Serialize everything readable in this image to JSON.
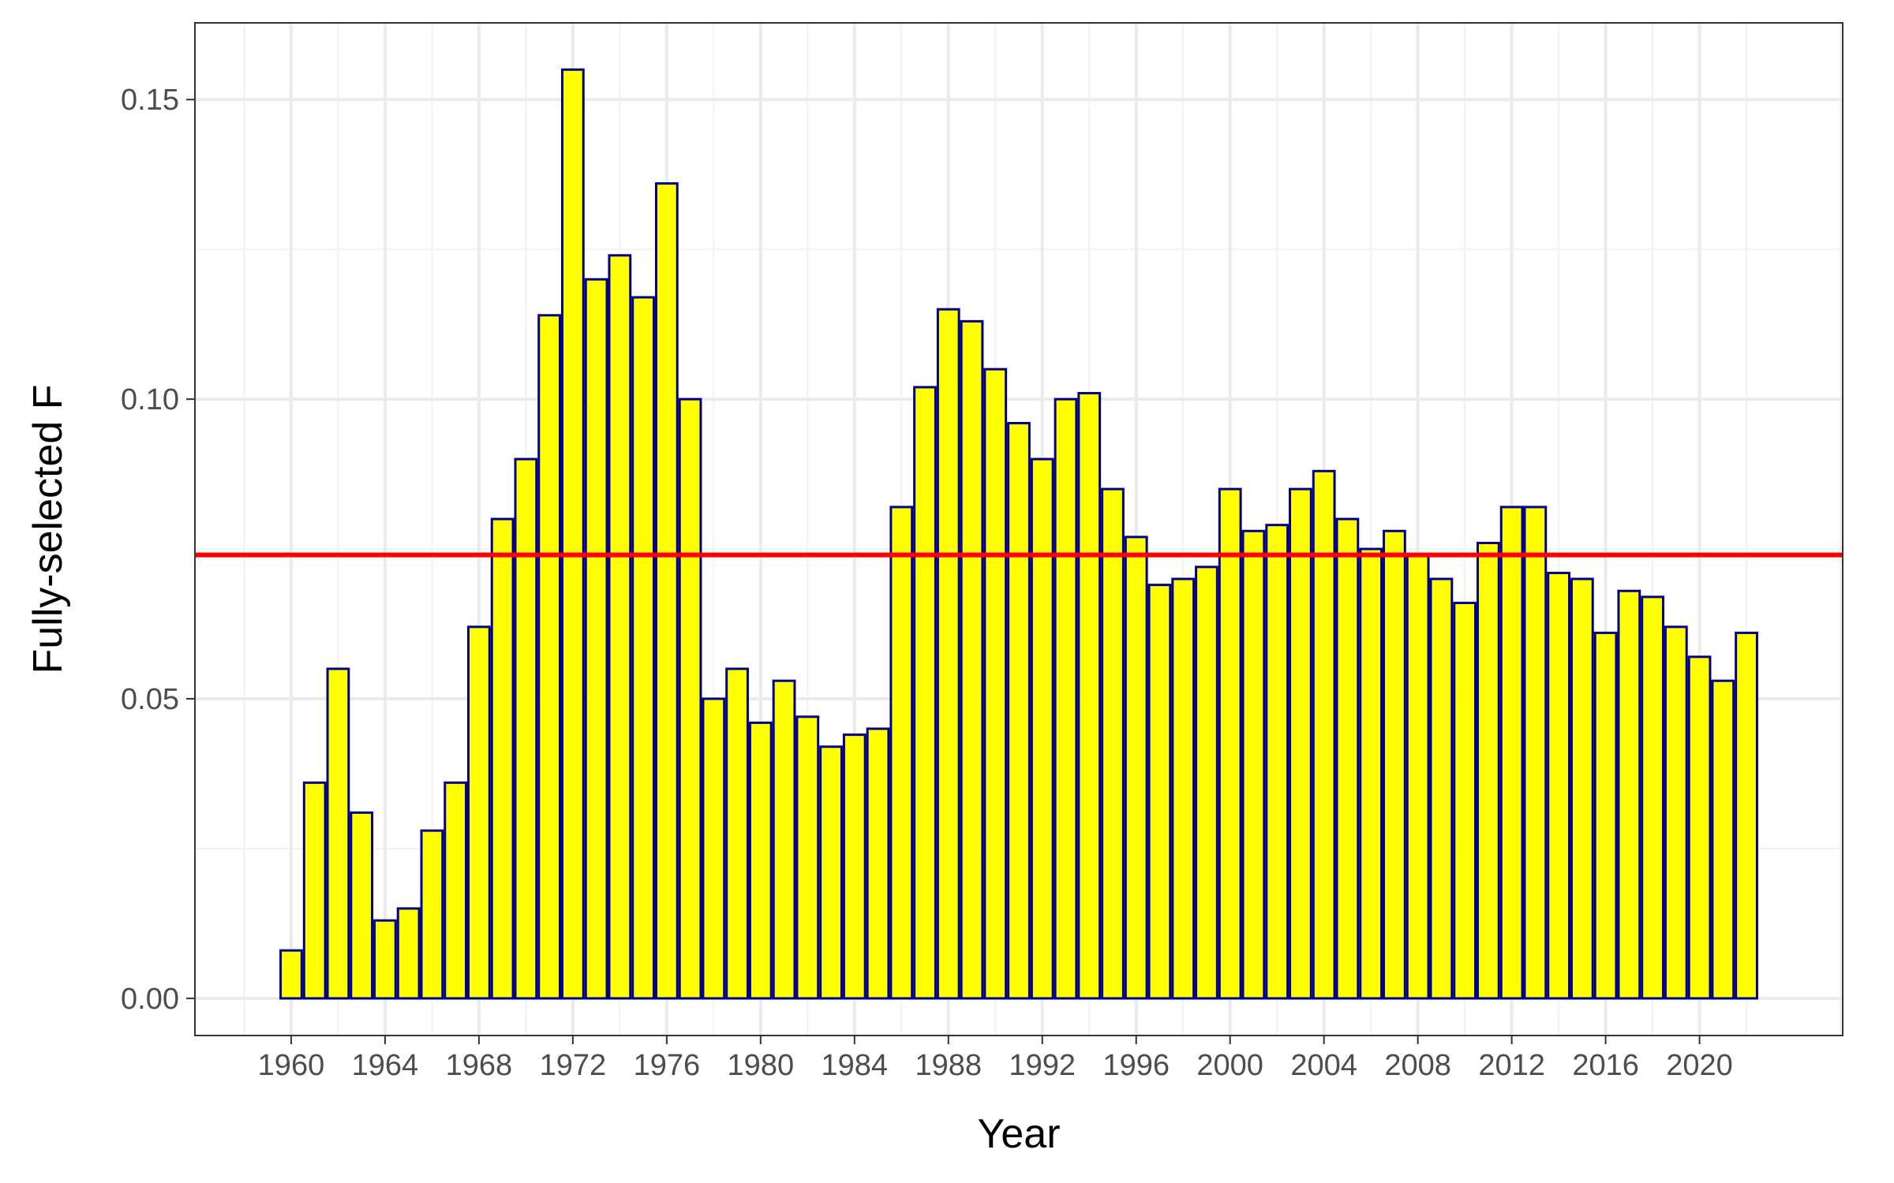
{
  "chart_data": {
    "type": "bar",
    "title": "",
    "xlabel": "Year",
    "ylabel": "Fully-selected F",
    "x": [
      1960,
      1961,
      1962,
      1963,
      1964,
      1965,
      1966,
      1967,
      1968,
      1969,
      1970,
      1971,
      1972,
      1973,
      1974,
      1975,
      1976,
      1977,
      1978,
      1979,
      1980,
      1981,
      1982,
      1983,
      1984,
      1985,
      1986,
      1987,
      1988,
      1989,
      1990,
      1991,
      1992,
      1993,
      1994,
      1995,
      1996,
      1997,
      1998,
      1999,
      2000,
      2001,
      2002,
      2003,
      2004,
      2005,
      2006,
      2007,
      2008,
      2009,
      2010,
      2011,
      2012,
      2013,
      2014,
      2015,
      2016,
      2017,
      2018,
      2019,
      2020,
      2021,
      2022
    ],
    "values": [
      0.008,
      0.036,
      0.055,
      0.031,
      0.013,
      0.015,
      0.028,
      0.036,
      0.062,
      0.08,
      0.09,
      0.114,
      0.155,
      0.12,
      0.124,
      0.117,
      0.136,
      0.1,
      0.05,
      0.055,
      0.046,
      0.053,
      0.047,
      0.042,
      0.044,
      0.045,
      0.082,
      0.102,
      0.115,
      0.113,
      0.105,
      0.096,
      0.09,
      0.1,
      0.101,
      0.085,
      0.077,
      0.069,
      0.07,
      0.072,
      0.085,
      0.078,
      0.079,
      0.085,
      0.088,
      0.08,
      0.075,
      0.078,
      0.074,
      0.07,
      0.066,
      0.076,
      0.082,
      0.082,
      0.071,
      0.07,
      0.061,
      0.068,
      0.067,
      0.062,
      0.057,
      0.053,
      0.061
    ],
    "reference_line": 0.074,
    "xlim": [
      1955.9,
      2026.1
    ],
    "ylim": [
      -0.0062,
      0.1628
    ],
    "x_ticks": [
      "1960",
      "1964",
      "1968",
      "1972",
      "1976",
      "1980",
      "1984",
      "1988",
      "1992",
      "1996",
      "2000",
      "2004",
      "2008",
      "2012",
      "2016",
      "2020"
    ],
    "y_ticks": [
      "0.00",
      "0.05",
      "0.10",
      "0.15"
    ],
    "grid": true,
    "legend": "none",
    "colors": {
      "bar_fill": "#FFFF00",
      "bar_outline": "#00008B",
      "reference_line": "#FF0000",
      "grid_major": "#EBEBEB",
      "grid_minor": "#F2F2F2",
      "panel_border": "#333333",
      "tick_text": "#4D4D4D",
      "axis_title": "#000000"
    }
  }
}
